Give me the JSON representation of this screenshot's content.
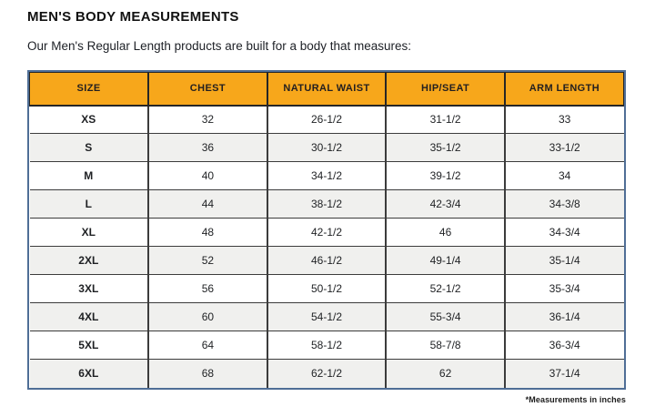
{
  "page": {
    "title": "MEN'S BODY MEASUREMENTS",
    "subtitle": "Our Men's Regular Length products are built for a body that measures:",
    "footnote": "*Measurements in inches"
  },
  "table": {
    "columns": [
      "SIZE",
      "CHEST",
      "NATURAL WAIST",
      "HIP/SEAT",
      "ARM LENGTH"
    ],
    "rows": [
      [
        "XS",
        "32",
        "26-1/2",
        "31-1/2",
        "33"
      ],
      [
        "S",
        "36",
        "30-1/2",
        "35-1/2",
        "33-1/2"
      ],
      [
        "M",
        "40",
        "34-1/2",
        "39-1/2",
        "34"
      ],
      [
        "L",
        "44",
        "38-1/2",
        "42-3/4",
        "34-3/8"
      ],
      [
        "XL",
        "48",
        "42-1/2",
        "46",
        "34-3/4"
      ],
      [
        "2XL",
        "52",
        "46-1/2",
        "49-1/4",
        "35-1/4"
      ],
      [
        "3XL",
        "56",
        "50-1/2",
        "52-1/2",
        "35-3/4"
      ],
      [
        "4XL",
        "60",
        "54-1/2",
        "55-3/4",
        "36-1/4"
      ],
      [
        "5XL",
        "64",
        "58-1/2",
        "58-7/8",
        "36-3/4"
      ],
      [
        "6XL",
        "68",
        "62-1/2",
        "62",
        "37-1/4"
      ]
    ],
    "units": "inches"
  },
  "colors": {
    "header_bg": "#F7A71B",
    "row_alt_bg": "#F0F0EE",
    "outer_border": "#4F6E96",
    "grid_border": "#3C3C3C",
    "text": "#1F2124"
  }
}
